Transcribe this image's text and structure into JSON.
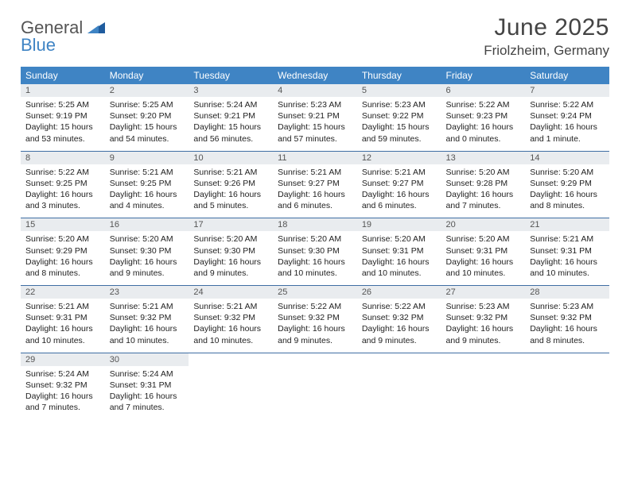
{
  "logo": {
    "word1": "General",
    "word2": "Blue"
  },
  "title": "June 2025",
  "location": "Friolzheim, Germany",
  "colors": {
    "header_bg": "#3f84c4",
    "header_text": "#ffffff",
    "daynum_bg": "#e9ecef",
    "border": "#3f6ea3",
    "logo_blue": "#3f84c4"
  },
  "day_headers": [
    "Sunday",
    "Monday",
    "Tuesday",
    "Wednesday",
    "Thursday",
    "Friday",
    "Saturday"
  ],
  "weeks": [
    [
      {
        "n": "1",
        "sr": "Sunrise: 5:25 AM",
        "ss": "Sunset: 9:19 PM",
        "dl": "Daylight: 15 hours and 53 minutes."
      },
      {
        "n": "2",
        "sr": "Sunrise: 5:25 AM",
        "ss": "Sunset: 9:20 PM",
        "dl": "Daylight: 15 hours and 54 minutes."
      },
      {
        "n": "3",
        "sr": "Sunrise: 5:24 AM",
        "ss": "Sunset: 9:21 PM",
        "dl": "Daylight: 15 hours and 56 minutes."
      },
      {
        "n": "4",
        "sr": "Sunrise: 5:23 AM",
        "ss": "Sunset: 9:21 PM",
        "dl": "Daylight: 15 hours and 57 minutes."
      },
      {
        "n": "5",
        "sr": "Sunrise: 5:23 AM",
        "ss": "Sunset: 9:22 PM",
        "dl": "Daylight: 15 hours and 59 minutes."
      },
      {
        "n": "6",
        "sr": "Sunrise: 5:22 AM",
        "ss": "Sunset: 9:23 PM",
        "dl": "Daylight: 16 hours and 0 minutes."
      },
      {
        "n": "7",
        "sr": "Sunrise: 5:22 AM",
        "ss": "Sunset: 9:24 PM",
        "dl": "Daylight: 16 hours and 1 minute."
      }
    ],
    [
      {
        "n": "8",
        "sr": "Sunrise: 5:22 AM",
        "ss": "Sunset: 9:25 PM",
        "dl": "Daylight: 16 hours and 3 minutes."
      },
      {
        "n": "9",
        "sr": "Sunrise: 5:21 AM",
        "ss": "Sunset: 9:25 PM",
        "dl": "Daylight: 16 hours and 4 minutes."
      },
      {
        "n": "10",
        "sr": "Sunrise: 5:21 AM",
        "ss": "Sunset: 9:26 PM",
        "dl": "Daylight: 16 hours and 5 minutes."
      },
      {
        "n": "11",
        "sr": "Sunrise: 5:21 AM",
        "ss": "Sunset: 9:27 PM",
        "dl": "Daylight: 16 hours and 6 minutes."
      },
      {
        "n": "12",
        "sr": "Sunrise: 5:21 AM",
        "ss": "Sunset: 9:27 PM",
        "dl": "Daylight: 16 hours and 6 minutes."
      },
      {
        "n": "13",
        "sr": "Sunrise: 5:20 AM",
        "ss": "Sunset: 9:28 PM",
        "dl": "Daylight: 16 hours and 7 minutes."
      },
      {
        "n": "14",
        "sr": "Sunrise: 5:20 AM",
        "ss": "Sunset: 9:29 PM",
        "dl": "Daylight: 16 hours and 8 minutes."
      }
    ],
    [
      {
        "n": "15",
        "sr": "Sunrise: 5:20 AM",
        "ss": "Sunset: 9:29 PM",
        "dl": "Daylight: 16 hours and 8 minutes."
      },
      {
        "n": "16",
        "sr": "Sunrise: 5:20 AM",
        "ss": "Sunset: 9:30 PM",
        "dl": "Daylight: 16 hours and 9 minutes."
      },
      {
        "n": "17",
        "sr": "Sunrise: 5:20 AM",
        "ss": "Sunset: 9:30 PM",
        "dl": "Daylight: 16 hours and 9 minutes."
      },
      {
        "n": "18",
        "sr": "Sunrise: 5:20 AM",
        "ss": "Sunset: 9:30 PM",
        "dl": "Daylight: 16 hours and 10 minutes."
      },
      {
        "n": "19",
        "sr": "Sunrise: 5:20 AM",
        "ss": "Sunset: 9:31 PM",
        "dl": "Daylight: 16 hours and 10 minutes."
      },
      {
        "n": "20",
        "sr": "Sunrise: 5:20 AM",
        "ss": "Sunset: 9:31 PM",
        "dl": "Daylight: 16 hours and 10 minutes."
      },
      {
        "n": "21",
        "sr": "Sunrise: 5:21 AM",
        "ss": "Sunset: 9:31 PM",
        "dl": "Daylight: 16 hours and 10 minutes."
      }
    ],
    [
      {
        "n": "22",
        "sr": "Sunrise: 5:21 AM",
        "ss": "Sunset: 9:31 PM",
        "dl": "Daylight: 16 hours and 10 minutes."
      },
      {
        "n": "23",
        "sr": "Sunrise: 5:21 AM",
        "ss": "Sunset: 9:32 PM",
        "dl": "Daylight: 16 hours and 10 minutes."
      },
      {
        "n": "24",
        "sr": "Sunrise: 5:21 AM",
        "ss": "Sunset: 9:32 PM",
        "dl": "Daylight: 16 hours and 10 minutes."
      },
      {
        "n": "25",
        "sr": "Sunrise: 5:22 AM",
        "ss": "Sunset: 9:32 PM",
        "dl": "Daylight: 16 hours and 9 minutes."
      },
      {
        "n": "26",
        "sr": "Sunrise: 5:22 AM",
        "ss": "Sunset: 9:32 PM",
        "dl": "Daylight: 16 hours and 9 minutes."
      },
      {
        "n": "27",
        "sr": "Sunrise: 5:23 AM",
        "ss": "Sunset: 9:32 PM",
        "dl": "Daylight: 16 hours and 9 minutes."
      },
      {
        "n": "28",
        "sr": "Sunrise: 5:23 AM",
        "ss": "Sunset: 9:32 PM",
        "dl": "Daylight: 16 hours and 8 minutes."
      }
    ],
    [
      {
        "n": "29",
        "sr": "Sunrise: 5:24 AM",
        "ss": "Sunset: 9:32 PM",
        "dl": "Daylight: 16 hours and 7 minutes."
      },
      {
        "n": "30",
        "sr": "Sunrise: 5:24 AM",
        "ss": "Sunset: 9:31 PM",
        "dl": "Daylight: 16 hours and 7 minutes."
      },
      {
        "empty": true
      },
      {
        "empty": true
      },
      {
        "empty": true
      },
      {
        "empty": true
      },
      {
        "empty": true
      }
    ]
  ]
}
